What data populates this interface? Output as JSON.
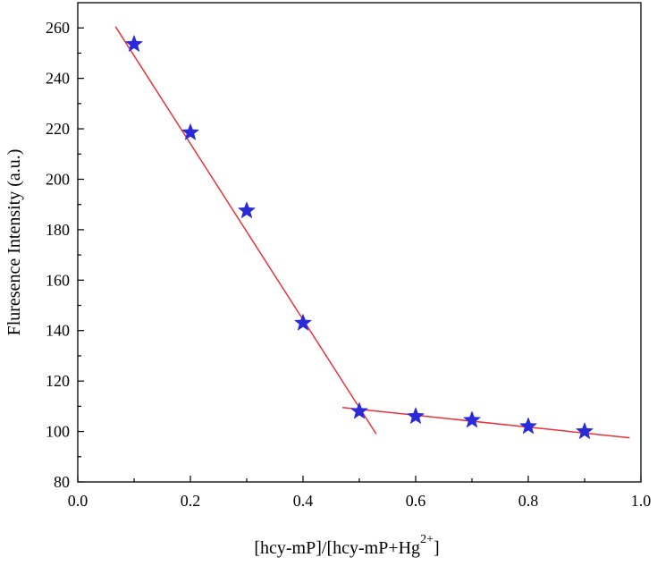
{
  "chart_data": {
    "type": "scatter",
    "xlabel_main": "[hcy-mP]/[hcy-mP+Hg",
    "xlabel_sup": "2+",
    "xlabel_end": "]",
    "ylabel": "Fluresence Intensity (a.u.)",
    "xlim": [
      0.0,
      1.0
    ],
    "ylim": [
      80,
      270
    ],
    "xticks": [
      0.0,
      0.2,
      0.4,
      0.6,
      0.8,
      1.0
    ],
    "xtick_labels": [
      "0.0",
      "0.2",
      "0.4",
      "0.6",
      "0.8",
      "1.0"
    ],
    "yticks": [
      80,
      100,
      120,
      140,
      160,
      180,
      200,
      220,
      240,
      260
    ],
    "ytick_labels": [
      "80",
      "100",
      "120",
      "140",
      "160",
      "180",
      "200",
      "220",
      "240",
      "260"
    ],
    "grid": false,
    "marker": "star",
    "marker_color": "#2a2ad8",
    "line_color": "#e8323c",
    "series": [
      {
        "x": [
          0.1,
          0.2,
          0.3,
          0.4,
          0.5,
          0.6,
          0.7,
          0.8,
          0.9
        ],
        "y": [
          253.5,
          218.5,
          187.5,
          143,
          108,
          106,
          104.5,
          102,
          100
        ]
      }
    ],
    "fit_lines": [
      {
        "x": [
          0.067,
          0.53
        ],
        "y": [
          260.5,
          99
        ]
      },
      {
        "x": [
          0.47,
          0.98
        ],
        "y": [
          109.5,
          97.5
        ]
      }
    ]
  }
}
